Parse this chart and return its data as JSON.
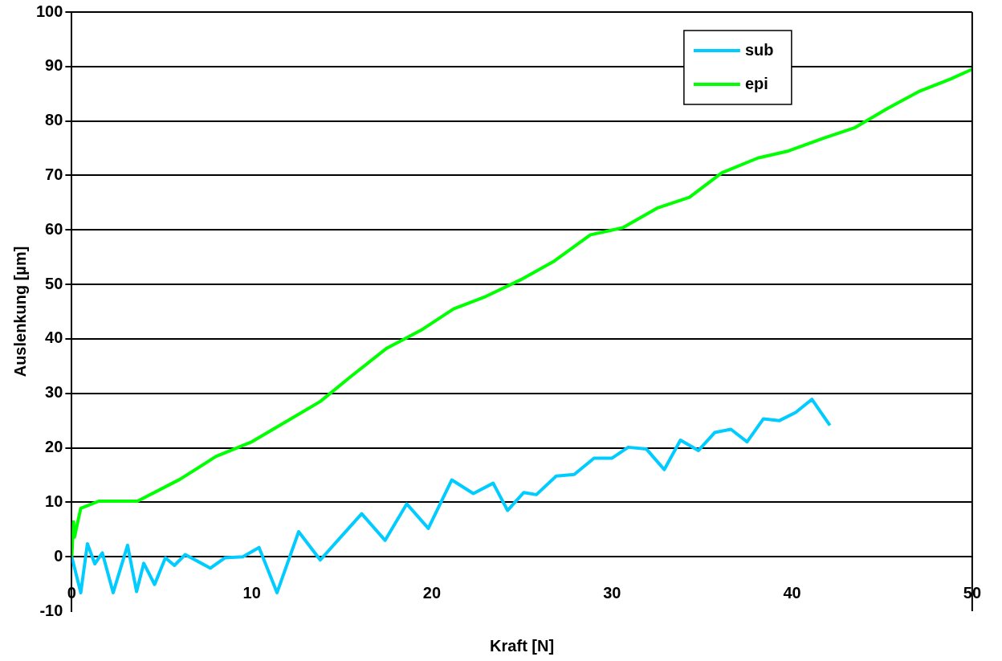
{
  "chart_data": {
    "type": "line",
    "xlabel": "Kraft [N]",
    "ylabel": "Auslenkung [µm]",
    "xlim": [
      0,
      50
    ],
    "xticks": [
      0,
      10,
      20,
      30,
      40,
      50
    ],
    "ylim": [
      -10,
      100
    ],
    "yticks": [
      -10,
      0,
      10,
      20,
      30,
      40,
      50,
      60,
      70,
      80,
      90,
      100
    ],
    "grid": "y",
    "legend": "top right",
    "marker": "none",
    "line_style": "solid",
    "series": [
      {
        "name": "sub",
        "color": "#00ccff",
        "x": [
          0,
          0.5,
          0.87,
          1.28,
          1.7,
          2.3,
          3.1,
          3.6,
          4.0,
          4.6,
          5.2,
          5.7,
          6.3,
          7.7,
          8.5,
          9.5,
          10.4,
          11.4,
          12.6,
          13.8,
          14.8,
          16.1,
          17.4,
          18.6,
          19.8,
          21.1,
          22.3,
          23.4,
          24.2,
          25.1,
          25.8,
          26.9,
          27.9,
          29.0,
          30.0,
          30.9,
          31.9,
          32.9,
          33.8,
          34.8,
          35.7,
          36.6,
          37.5,
          38.4,
          39.3,
          40.2,
          41.1,
          42.1
        ],
        "values": [
          0,
          -6.6,
          2.4,
          -1.3,
          0.7,
          -6.6,
          2.1,
          -6.4,
          -1.2,
          -5.1,
          -0.2,
          -1.6,
          0.4,
          -2.1,
          -0.2,
          0,
          1.7,
          -6.6,
          4.6,
          -0.6,
          3.1,
          7.9,
          3.0,
          9.7,
          5.2,
          14.1,
          11.6,
          13.5,
          8.5,
          11.8,
          11.4,
          14.8,
          15.1,
          18.1,
          18.1,
          20.1,
          19.8,
          16.0,
          21.4,
          19.5,
          22.8,
          23.4,
          21.1,
          25.3,
          25.0,
          26.5,
          28.9,
          24.1
        ]
      },
      {
        "name": "epi",
        "color": "#00ff00",
        "x": [
          0,
          0.1,
          0.15,
          0.5,
          1.5,
          3.65,
          6.0,
          8.0,
          10.0,
          11.9,
          13.8,
          15.5,
          17.5,
          19.4,
          21.2,
          23.0,
          24.9,
          26.8,
          28.8,
          30.6,
          32.5,
          34.3,
          36.1,
          38.1,
          39.8,
          41.7,
          43.5,
          45.3,
          47.1,
          48.8,
          50
        ],
        "values": [
          0,
          6.4,
          3.6,
          8.9,
          10.2,
          10.2,
          14.2,
          18.4,
          21.1,
          24.8,
          28.5,
          33.1,
          38.3,
          41.6,
          45.5,
          47.8,
          50.8,
          54.3,
          59.1,
          60.4,
          64.0,
          66.0,
          70.5,
          73.2,
          74.5,
          76.8,
          78.8,
          82.3,
          85.5,
          87.7,
          89.5
        ]
      }
    ]
  }
}
